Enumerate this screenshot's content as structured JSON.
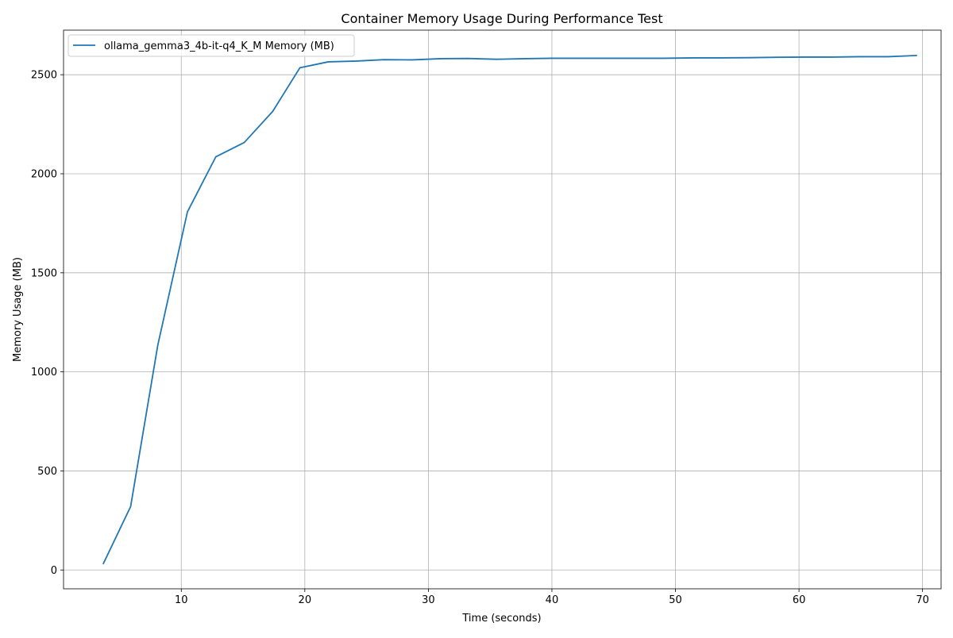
{
  "chart_data": {
    "type": "line",
    "title": "Container Memory Usage During Performance Test",
    "xlabel": "Time (seconds)",
    "ylabel": "Memory Usage (MB)",
    "xlim": [
      0.47,
      71.5
    ],
    "ylim": [
      -95,
      2725
    ],
    "x_ticks": [
      10,
      20,
      30,
      40,
      50,
      60,
      70
    ],
    "y_ticks": [
      0,
      500,
      1000,
      1500,
      2000,
      2500
    ],
    "grid": true,
    "legend_position": "upper-left",
    "series": [
      {
        "name": "ollama_gemma3_4b-it-q4_K_M Memory (MB)",
        "color": "#1f77b4",
        "x": [
          3.7,
          5.9,
          8.1,
          10.5,
          12.8,
          15.1,
          17.4,
          19.6,
          21.9,
          24.2,
          26.4,
          28.7,
          31.0,
          33.2,
          35.5,
          37.8,
          40.0,
          42.3,
          44.6,
          46.8,
          49.1,
          51.4,
          53.6,
          55.9,
          58.2,
          60.4,
          62.7,
          64.9,
          67.2,
          69.5
        ],
        "y": [
          33,
          320,
          1135,
          1808,
          2086,
          2158,
          2315,
          2535,
          2565,
          2569,
          2576,
          2575,
          2581,
          2582,
          2578,
          2581,
          2583,
          2583,
          2583,
          2583,
          2583,
          2585,
          2585,
          2586,
          2588,
          2589,
          2589,
          2591,
          2591,
          2597
        ]
      }
    ]
  }
}
